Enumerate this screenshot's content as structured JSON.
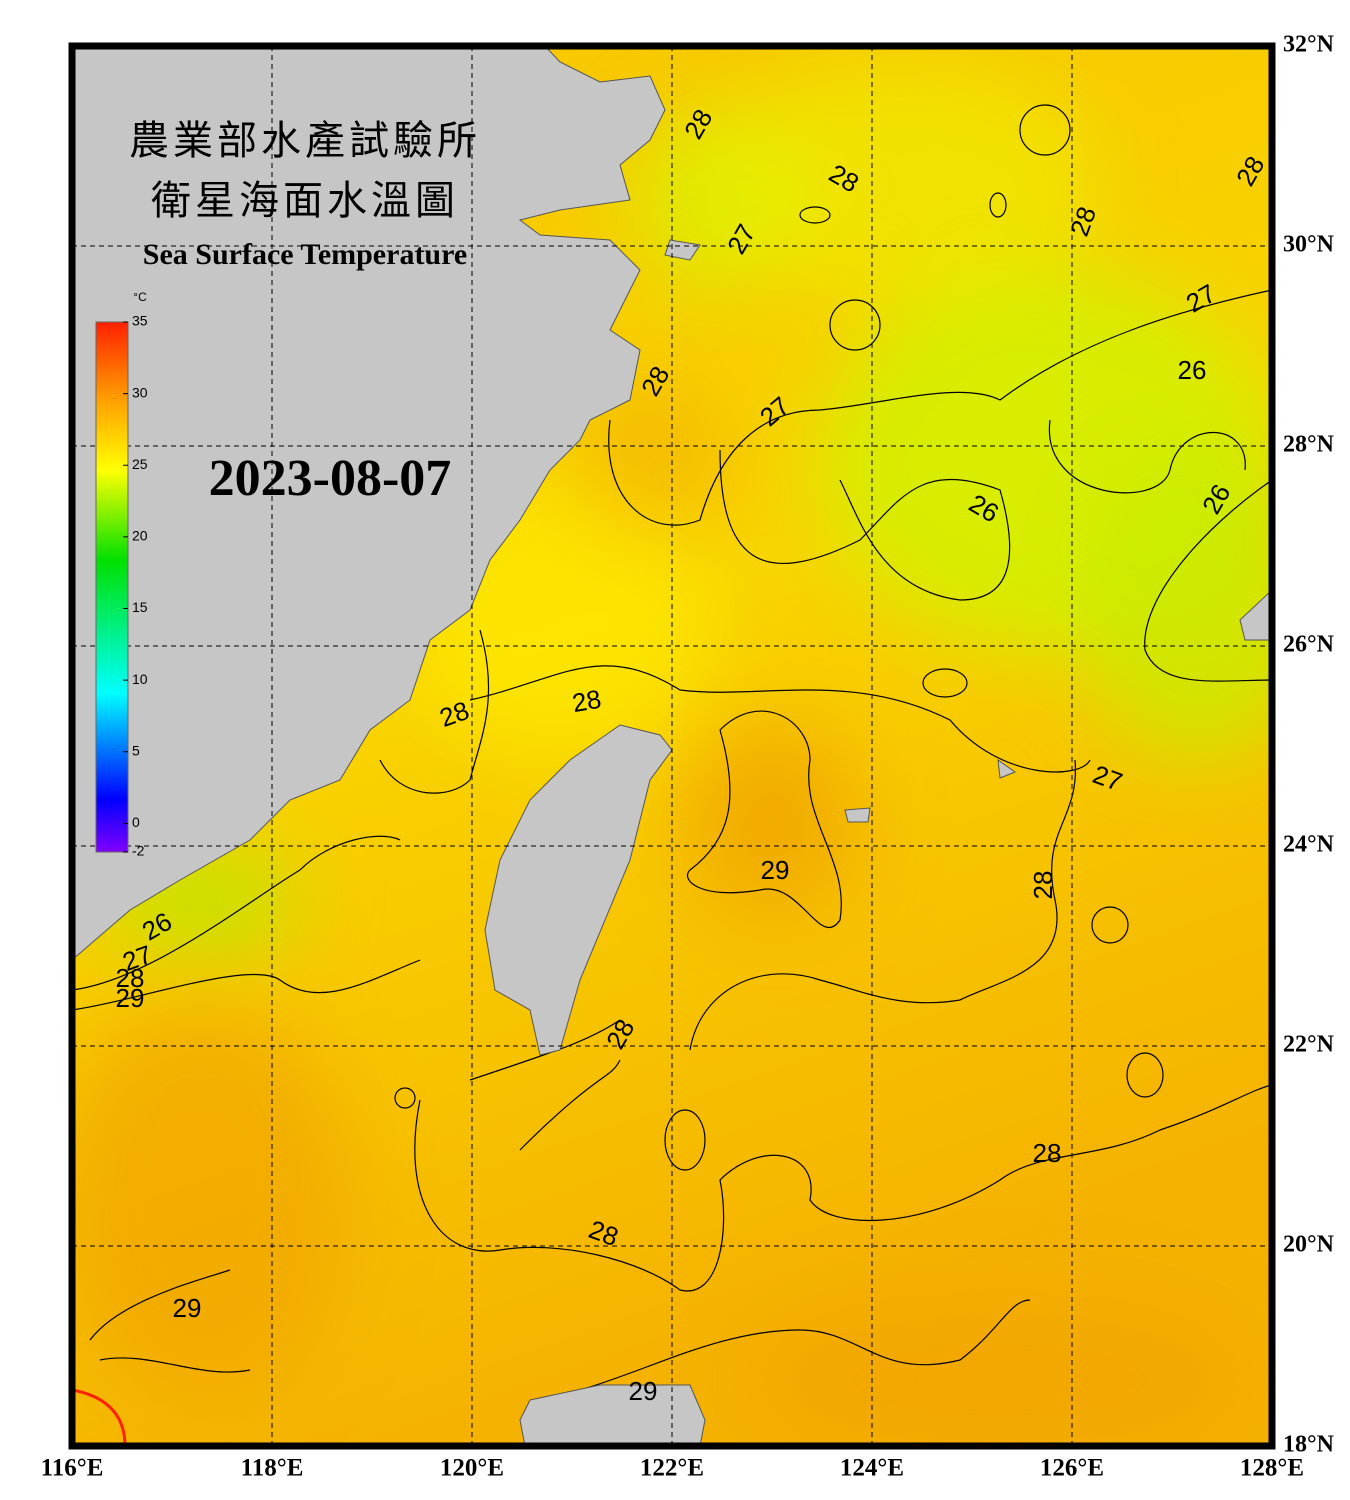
{
  "map": {
    "title": [
      "農業部水產試驗所",
      "衛星海面水溫圖"
    ],
    "subtitle": "Sea Surface Temperature",
    "date": "2023-08-07",
    "colorbar": {
      "unit": "°C",
      "range": [
        -2,
        35
      ],
      "ticks": [
        35,
        30,
        25,
        20,
        15,
        10,
        5,
        0,
        -2
      ]
    },
    "lon_ticks": [
      {
        "value": 116,
        "label": "116°E"
      },
      {
        "value": 118,
        "label": "118°E"
      },
      {
        "value": 120,
        "label": "120°E"
      },
      {
        "value": 122,
        "label": "122°E"
      },
      {
        "value": 124,
        "label": "124°E"
      },
      {
        "value": 126,
        "label": "126°E"
      },
      {
        "value": 128,
        "label": "128°E"
      }
    ],
    "lat_ticks": [
      {
        "value": 32,
        "label": "32°N"
      },
      {
        "value": 30,
        "label": "30°N"
      },
      {
        "value": 28,
        "label": "28°N"
      },
      {
        "value": 26,
        "label": "26°N"
      },
      {
        "value": 24,
        "label": "24°N"
      },
      {
        "value": 22,
        "label": "22°N"
      },
      {
        "value": 20,
        "label": "20°N"
      },
      {
        "value": 18,
        "label": "18°N"
      }
    ],
    "contour_labels": [
      "28",
      "28",
      "27",
      "28",
      "28",
      "27",
      "28",
      "27",
      "26",
      "26",
      "26",
      "28",
      "28",
      "27",
      "29",
      "28",
      "26",
      "27",
      "28",
      "29",
      "28",
      "28",
      "28",
      "29",
      "29"
    ]
  }
}
